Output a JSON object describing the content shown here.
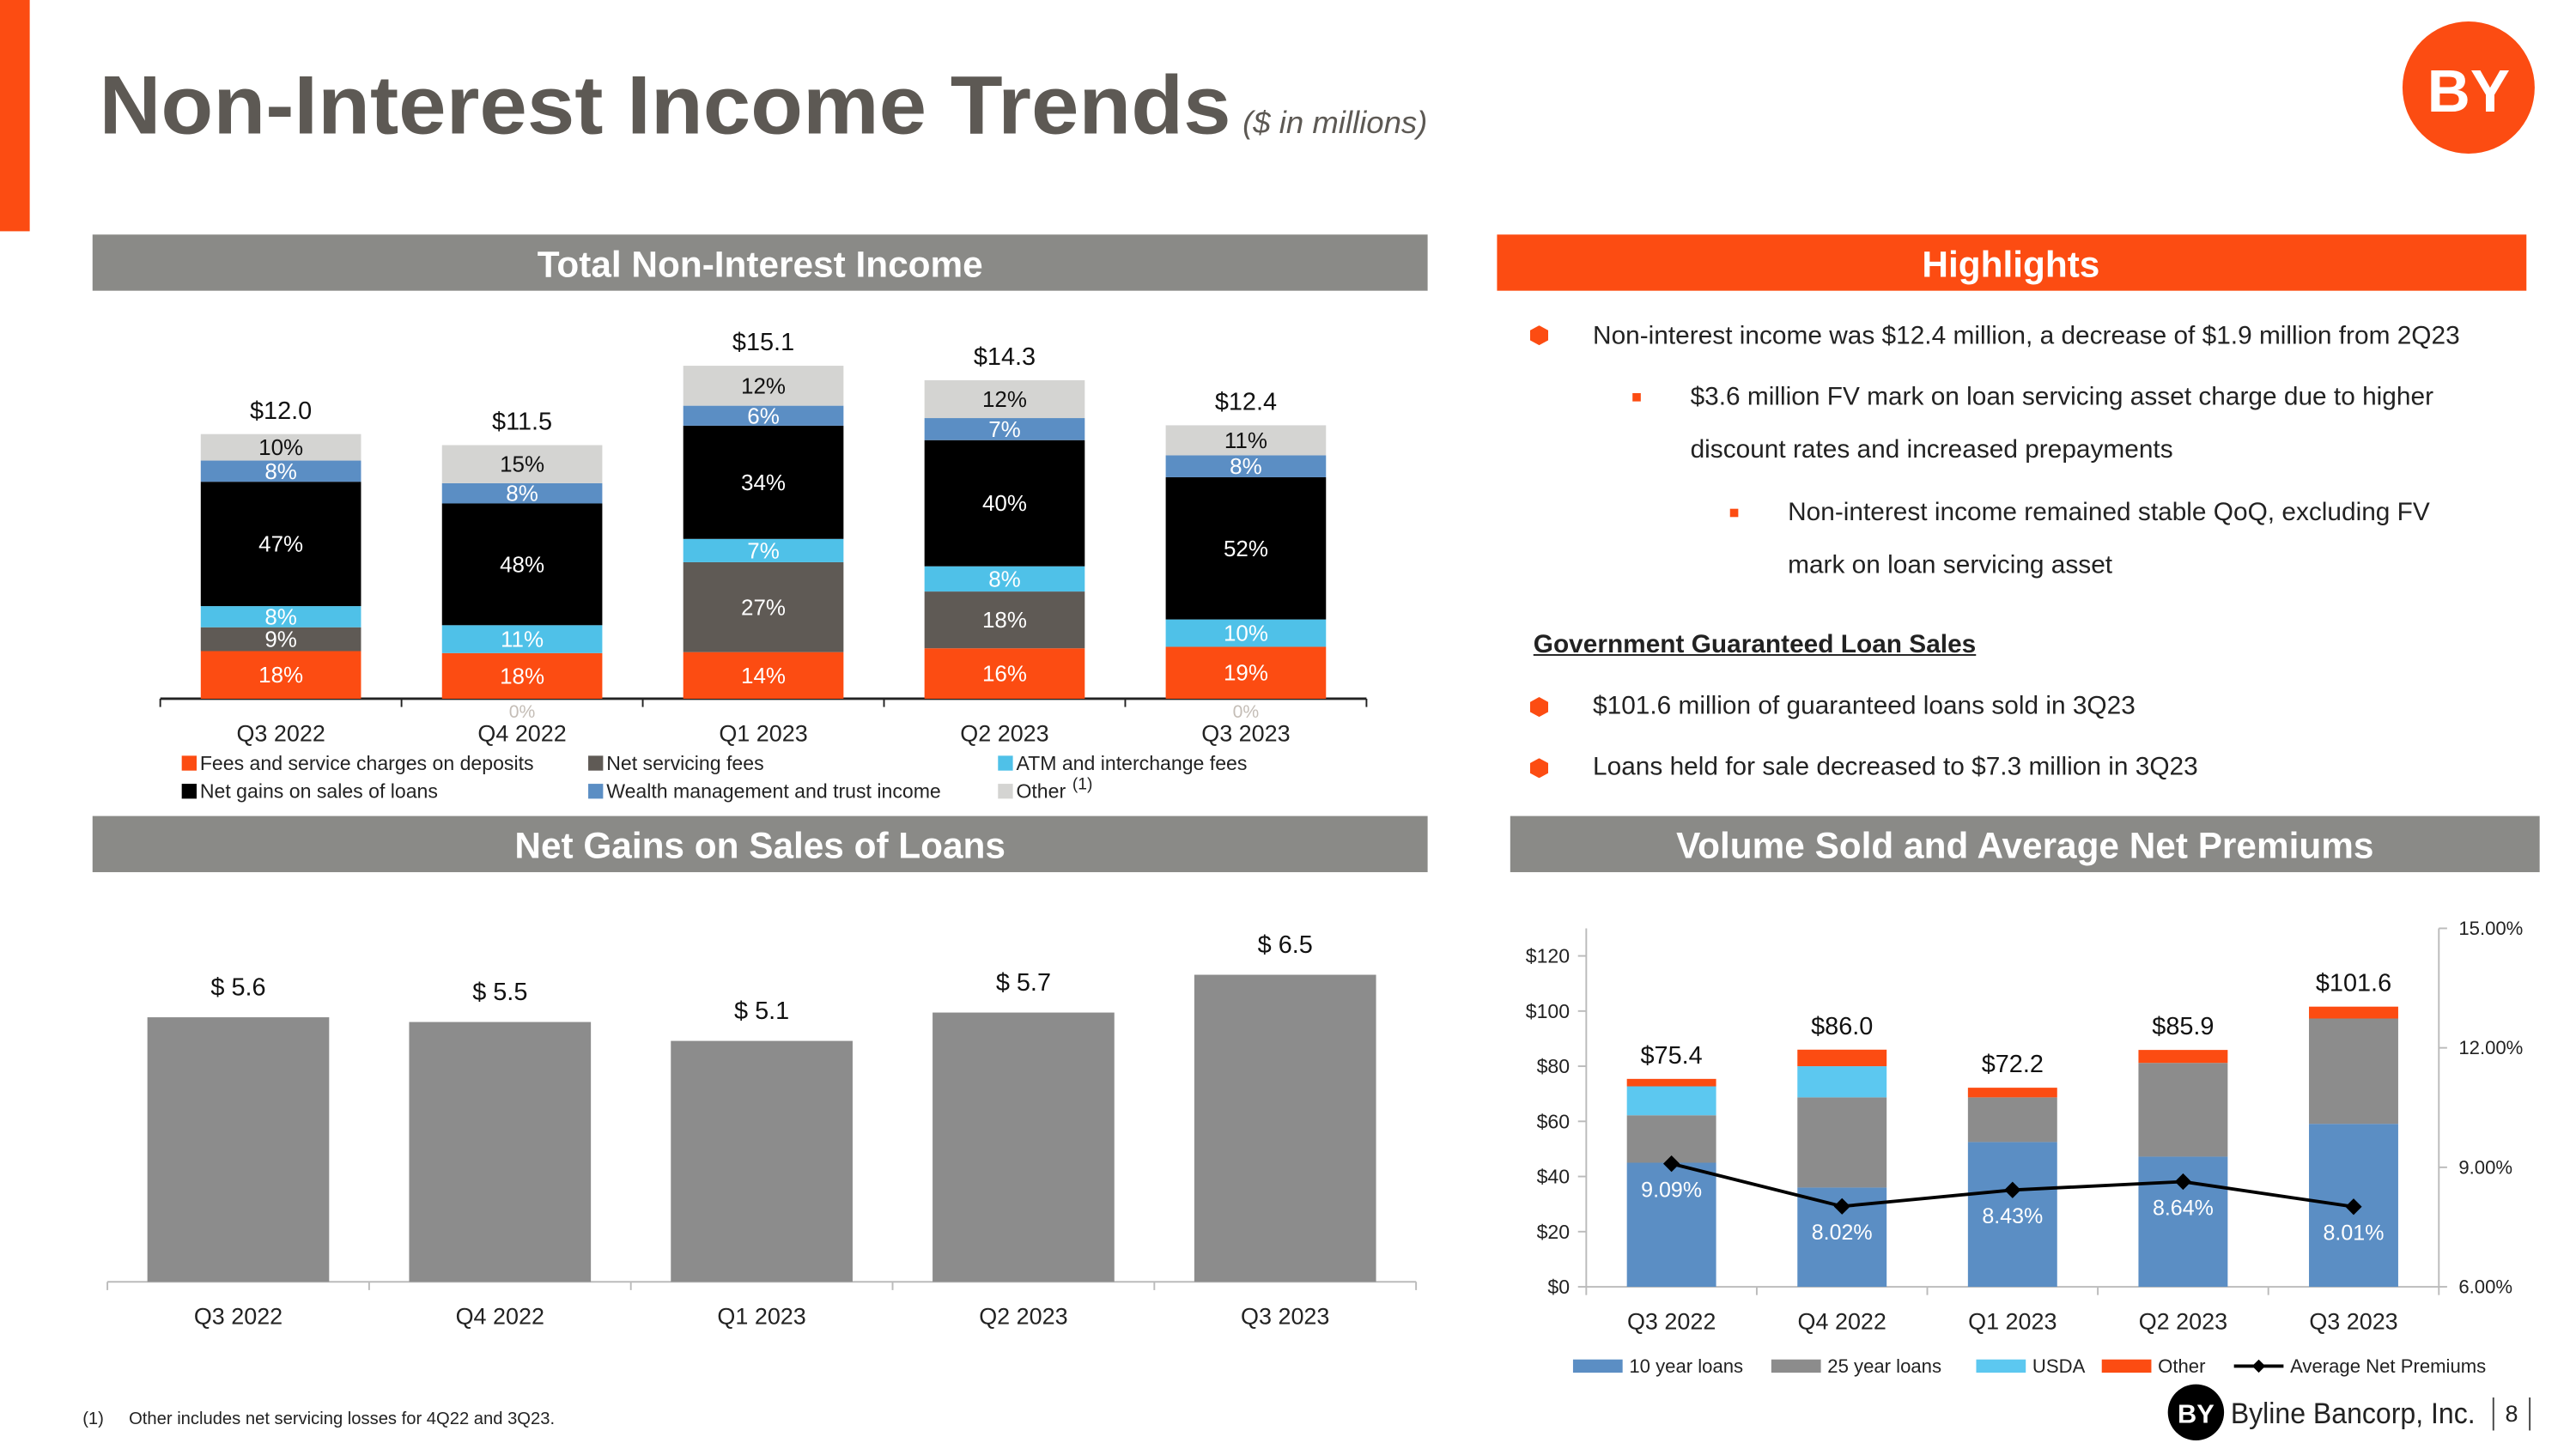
{
  "header": {
    "title": "Non-Interest Income Trends",
    "subtitle": "($ in millions)"
  },
  "logo": "BY",
  "highlights": {
    "title": "Highlights",
    "points": [
      {
        "text": "Non-interest income was $12.4 million, a decrease of $1.9 million from 2Q23",
        "sub": [
          {
            "text": "$3.6 million FV mark on loan servicing asset charge due to higher discount rates and increased prepayments",
            "sub": [
              {
                "text": "Non-interest income remained stable QoQ, excluding FV mark on loan servicing asset"
              }
            ]
          }
        ]
      }
    ],
    "loan_sales": {
      "heading": "Government Guaranteed Loan Sales",
      "points": [
        "$101.6 million of guaranteed loans sold in 3Q23",
        "Loans held for sale decreased to $7.3 million in 3Q23"
      ]
    }
  },
  "footnote": {
    "marker": "(1)",
    "text": "Other includes net servicing losses for 4Q22 and 3Q23."
  },
  "footer": {
    "company": "Byline Bancorp, Inc.",
    "page": 8
  },
  "chart_data": [
    {
      "type": "bar",
      "title": "Total Non-Interest Income",
      "stacked": "percent",
      "categories": [
        "Q3 2022",
        "Q4 2022",
        "Q1 2023",
        "Q2 2023",
        "Q3 2023"
      ],
      "totals": [
        12.0,
        11.5,
        15.1,
        14.3,
        12.4
      ],
      "total_labels": [
        "$12.0",
        "$11.5",
        "$15.1",
        "$14.3",
        "$12.4"
      ],
      "footnote_marker": "(1)",
      "series": [
        {
          "name": "Fees and service charges on deposits",
          "color": "#fc4c12",
          "values": [
            18,
            18,
            14,
            16,
            19
          ],
          "value_labels": [
            "18%",
            "18%",
            "14%",
            "16%",
            "19%"
          ]
        },
        {
          "name": "Net servicing fees",
          "color": "#5f5a55",
          "values": [
            9,
            0,
            27,
            18,
            0
          ],
          "value_labels": [
            "9%",
            "0%",
            "27%",
            "18%",
            "0%"
          ]
        },
        {
          "name": "ATM and interchange fees",
          "color": "#4fc1e8",
          "values": [
            8,
            11,
            7,
            8,
            10
          ],
          "value_labels": [
            "8%",
            "11%",
            "7%",
            "8%",
            "10%"
          ]
        },
        {
          "name": "Net gains on sales of loans",
          "color": "#000000",
          "values": [
            47,
            48,
            34,
            40,
            52
          ],
          "value_labels": [
            "47%",
            "48%",
            "34%",
            "40%",
            "52%"
          ]
        },
        {
          "name": "Wealth management and trust income",
          "color": "#5b8ec4",
          "values": [
            8,
            8,
            6,
            7,
            8
          ],
          "value_labels": [
            "8%",
            "8%",
            "6%",
            "7%",
            "8%"
          ]
        },
        {
          "name": "Other",
          "color": "#d4d4d2",
          "values": [
            10,
            15,
            12,
            12,
            11
          ],
          "value_labels": [
            "10%",
            "15%",
            "12%",
            "12%",
            "11%"
          ]
        }
      ]
    },
    {
      "type": "bar",
      "title": "Net Gains on Sales of Loans",
      "categories": [
        "Q3 2022",
        "Q4 2022",
        "Q1 2023",
        "Q2 2023",
        "Q3 2023"
      ],
      "values": [
        5.6,
        5.5,
        5.1,
        5.7,
        6.5
      ],
      "value_labels": [
        "$ 5.6",
        "$ 5.5",
        "$ 5.1",
        "$ 5.7",
        "$ 6.5"
      ],
      "color": "#8c8c8c"
    },
    {
      "type": "bar",
      "title": "Volume Sold and Average Net Premiums",
      "stacked": true,
      "categories": [
        "Q3 2022",
        "Q4 2022",
        "Q1 2023",
        "Q2 2023",
        "Q3 2023"
      ],
      "totals": [
        75.4,
        86.0,
        72.2,
        85.9,
        101.6
      ],
      "total_labels": [
        "$75.4",
        "$86.0",
        "$72.2",
        "$85.9",
        "$101.6"
      ],
      "ylim": [
        0,
        130
      ],
      "yticks": [
        {
          "value": 0,
          "label": "$0"
        },
        {
          "value": 20,
          "label": "$20"
        },
        {
          "value": 40,
          "label": "$40"
        },
        {
          "value": 60,
          "label": "$60"
        },
        {
          "value": 80,
          "label": "$80"
        },
        {
          "value": 100,
          "label": "$100"
        },
        {
          "value": 120,
          "label": "$120"
        }
      ],
      "y2lim": [
        6,
        15
      ],
      "y2ticks": [
        {
          "value": 6,
          "label": "6.00%"
        },
        {
          "value": 9,
          "label": "9.00%"
        },
        {
          "value": 12,
          "label": "12.00%"
        },
        {
          "value": 15,
          "label": "15.00%"
        }
      ],
      "series": [
        {
          "name": "10 year loans",
          "color": "#5b8ec4",
          "values": [
            45.0,
            36.0,
            52.5,
            47.2,
            59.1
          ]
        },
        {
          "name": "25 year loans",
          "color": "#8c8c8c",
          "values": [
            17.2,
            32.7,
            16.2,
            34.0,
            38.2
          ]
        },
        {
          "name": "USDA",
          "color": "#5cc8f0",
          "values": [
            10.5,
            11.3,
            0,
            0,
            0
          ]
        },
        {
          "name": "Other",
          "color": "#fc4c12",
          "values": [
            2.7,
            6.0,
            3.5,
            4.7,
            4.3
          ]
        },
        {
          "name": "Average Net Premiums",
          "type": "line",
          "axis": "y2",
          "color": "#000000",
          "values": [
            9.09,
            8.02,
            8.43,
            8.64,
            8.01
          ],
          "value_labels": [
            "9.09%",
            "8.02%",
            "8.43%",
            "8.64%",
            "8.01%"
          ]
        }
      ]
    }
  ]
}
